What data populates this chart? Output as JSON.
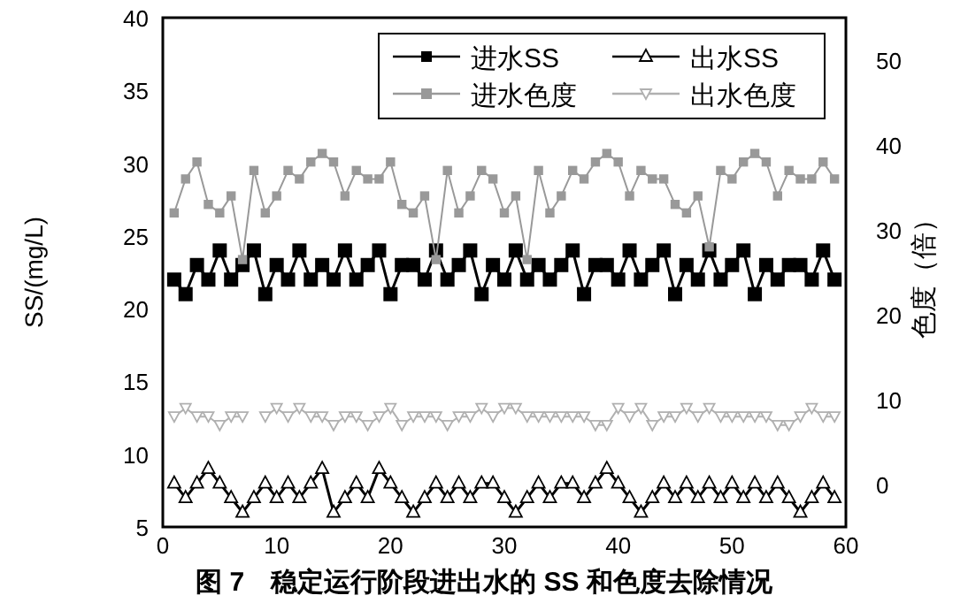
{
  "chart_data": {
    "type": "line",
    "title": "图 7　稳定运行阶段进出水的 SS 和色度去除情况",
    "ylabel": "SS/(mg/L)",
    "y2label": "色度（倍）",
    "x": [
      1,
      2,
      3,
      4,
      5,
      6,
      7,
      8,
      9,
      10,
      11,
      12,
      13,
      14,
      15,
      16,
      17,
      18,
      19,
      20,
      21,
      22,
      23,
      24,
      25,
      26,
      27,
      28,
      29,
      30,
      31,
      32,
      33,
      34,
      35,
      36,
      37,
      38,
      39,
      40,
      41,
      42,
      43,
      44,
      45,
      46,
      47,
      48,
      49,
      50,
      51,
      52,
      53,
      54,
      55,
      56,
      57,
      58,
      59
    ],
    "xlim": [
      0,
      60
    ],
    "xticks": [
      0,
      10,
      20,
      30,
      40,
      50,
      60
    ],
    "ylim": [
      5,
      40
    ],
    "yticks": [
      5,
      10,
      15,
      20,
      25,
      30,
      35,
      40
    ],
    "y2lim": [
      -5,
      55
    ],
    "y2ticks": [
      0,
      10,
      20,
      30,
      40,
      50
    ],
    "grid": false,
    "legend": "top right",
    "line_style": "solid",
    "series": [
      {
        "name": "进水SS",
        "color": "#000000",
        "marker": "square",
        "values": [
          22,
          21,
          23,
          22,
          24,
          22,
          23,
          24,
          21,
          23,
          22,
          24,
          22,
          23,
          22,
          24,
          22,
          23,
          24,
          21,
          23,
          23,
          22,
          24,
          22,
          23,
          24,
          21,
          23,
          22,
          24,
          22,
          23,
          22,
          23,
          24,
          21,
          23,
          23,
          22,
          24,
          22,
          23,
          24,
          21,
          23,
          22,
          24,
          22,
          23,
          24,
          21,
          23,
          22,
          23,
          23,
          22,
          24,
          22
        ]
      },
      {
        "name": "出水SS",
        "color": "#000000",
        "marker": "triangle",
        "values": [
          8,
          7,
          8,
          9,
          8,
          7,
          6,
          7,
          8,
          7,
          8,
          7,
          8,
          9,
          6,
          7,
          8,
          7,
          9,
          8,
          7,
          6,
          7,
          8,
          7,
          8,
          7,
          8,
          8,
          7,
          6,
          7,
          8,
          7,
          8,
          8,
          7,
          8,
          9,
          8,
          7,
          6,
          7,
          8,
          7,
          8,
          7,
          8,
          7,
          8,
          7,
          8,
          7,
          8,
          7,
          6,
          7,
          8,
          7
        ]
      },
      {
        "name": "进水色度",
        "color": "#999999",
        "marker": "square",
        "axis": "y2",
        "values": [
          32,
          36,
          38,
          33,
          32,
          34,
          26.5,
          37,
          32,
          34,
          37,
          36,
          38,
          39,
          38,
          34,
          37,
          36,
          36,
          38,
          33,
          32,
          34,
          26.5,
          37,
          32,
          34,
          37,
          36,
          32,
          34,
          26.5,
          37,
          32,
          34,
          37,
          36,
          38,
          39,
          38,
          34,
          37,
          36,
          36,
          33,
          32,
          34,
          28,
          37,
          36,
          38,
          39,
          38,
          34,
          37,
          36,
          36,
          38,
          36
        ]
      },
      {
        "name": "出水色度",
        "color": "#b0b0b0",
        "marker": "triangle-down",
        "axis": "y2",
        "values": [
          8,
          9,
          8,
          8,
          7,
          8,
          8,
          null,
          8,
          9,
          8,
          9,
          8,
          8,
          7,
          8,
          8,
          7,
          8,
          9,
          7,
          8,
          8,
          8,
          7,
          8,
          8,
          9,
          8,
          9,
          9,
          8,
          8,
          8,
          8,
          8,
          8,
          7,
          7,
          9,
          8,
          9,
          7,
          8,
          8,
          9,
          8,
          9,
          8,
          8,
          8,
          8,
          8,
          7,
          7,
          8,
          9,
          8,
          8
        ]
      }
    ]
  }
}
